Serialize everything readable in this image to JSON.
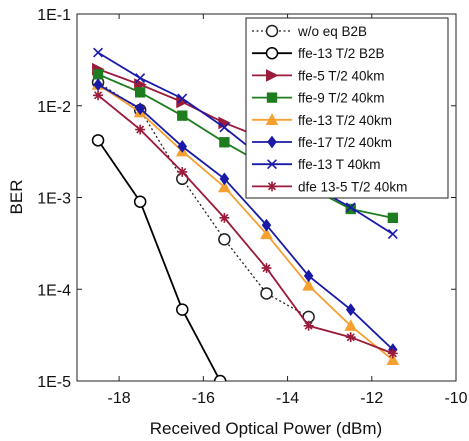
{
  "chart_data": {
    "type": "line",
    "title": "",
    "xlabel": "Received Optical Power (dBm)",
    "ylabel": "BER",
    "xlim": [
      -19,
      -10
    ],
    "ylim": [
      1e-05,
      0.1
    ],
    "yscale": "log",
    "grid": false,
    "legend_position": "top-right",
    "x_ticks": [
      {
        "value": -18,
        "label": "-18"
      },
      {
        "value": -16,
        "label": "-16"
      },
      {
        "value": -14,
        "label": "-14"
      },
      {
        "value": -12,
        "label": "-12"
      },
      {
        "value": -10,
        "label": "-10"
      }
    ],
    "y_ticks": [
      {
        "value": 1e-05,
        "label": "1E-5"
      },
      {
        "value": 0.0001,
        "label": "1E-4"
      },
      {
        "value": 0.001,
        "label": "1E-3"
      },
      {
        "value": 0.01,
        "label": "1E-2"
      },
      {
        "value": 0.1,
        "label": "1E-1"
      }
    ],
    "series": [
      {
        "name": "w/o eq B2B",
        "color": "#222222",
        "dash": "dotted",
        "marker": "open-circle",
        "x": [
          -18.5,
          -17.5,
          -16.5,
          -15.5,
          -14.5,
          -13.5
        ],
        "y": [
          0.018,
          0.009,
          0.0016,
          0.00035,
          9e-05,
          5e-05
        ]
      },
      {
        "name": "ffe-13 T/2 B2B",
        "color": "#000000",
        "dash": "solid",
        "marker": "open-circle",
        "x": [
          -18.5,
          -17.5,
          -16.5,
          -15.6
        ],
        "y": [
          0.0042,
          0.0009,
          6e-05,
          1e-05
        ]
      },
      {
        "name": "ffe-5 T/2 40km",
        "color": "#9b1b3a",
        "dash": "solid",
        "marker": "triangle-right",
        "x": [
          -18.5,
          -17.5,
          -16.5,
          -15.5,
          -14.5,
          -13.5,
          -12.5,
          -11.5
        ],
        "y": [
          0.025,
          0.017,
          0.011,
          0.0065,
          0.0043,
          0.003,
          0.0024,
          0.0019
        ]
      },
      {
        "name": "ffe-9 T/2 40km",
        "color": "#1e7d1e",
        "dash": "solid",
        "marker": "square",
        "x": [
          -18.5,
          -17.5,
          -16.5,
          -15.5,
          -14.5,
          -13.5,
          -12.5,
          -11.5
        ],
        "y": [
          0.022,
          0.014,
          0.0078,
          0.004,
          0.0022,
          0.0013,
          0.00075,
          0.0006
        ]
      },
      {
        "name": "ffe-13 T/2 40km",
        "color": "#f5a030",
        "dash": "solid",
        "marker": "triangle-up",
        "x": [
          -18.5,
          -17.5,
          -16.5,
          -15.5,
          -14.5,
          -13.5,
          -12.5,
          -11.5
        ],
        "y": [
          0.017,
          0.0085,
          0.0032,
          0.0013,
          0.0004,
          0.00011,
          4e-05,
          1.7e-05
        ]
      },
      {
        "name": "ffe-17 T/2 40km",
        "color": "#1a1aa8",
        "dash": "solid",
        "marker": "diamond",
        "x": [
          -18.5,
          -17.5,
          -16.5,
          -15.5,
          -14.5,
          -13.5,
          -12.5,
          -11.5
        ],
        "y": [
          0.017,
          0.0093,
          0.0036,
          0.0016,
          0.0005,
          0.00014,
          6e-05,
          2.2e-05
        ]
      },
      {
        "name": "ffe-13 T 40km",
        "color": "#1a1aa8",
        "dash": "solid",
        "marker": "x",
        "x": [
          -18.5,
          -17.5,
          -16.5,
          -15.5,
          -14.5,
          -13.5,
          -12.5,
          -11.5
        ],
        "y": [
          0.038,
          0.02,
          0.012,
          0.0058,
          0.0025,
          0.0014,
          0.00078,
          0.0004
        ]
      },
      {
        "name": "dfe 13-5 T/2 40km",
        "color": "#9b1b3a",
        "dash": "solid",
        "marker": "asterisk",
        "x": [
          -18.5,
          -17.5,
          -16.5,
          -15.5,
          -14.5,
          -13.5,
          -12.5,
          -11.5
        ],
        "y": [
          0.013,
          0.0055,
          0.0019,
          0.0006,
          0.00017,
          4e-05,
          3e-05,
          2e-05
        ]
      }
    ]
  }
}
